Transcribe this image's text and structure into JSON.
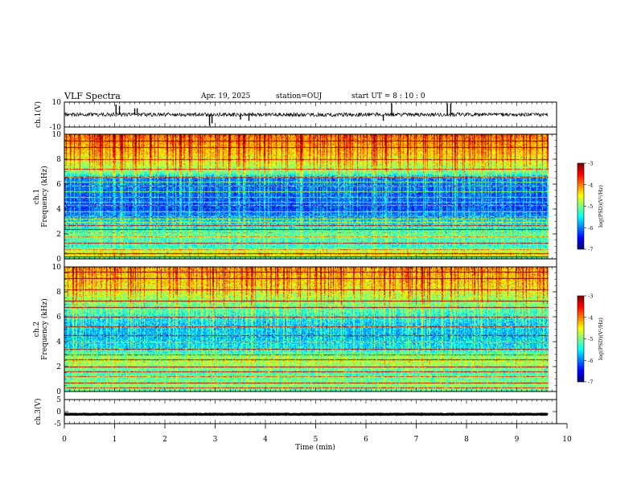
{
  "header": {
    "title": "VLF Spectra",
    "date": "Apr. 19, 2025",
    "station": "station=OUJ",
    "start_ut": "start UT =  8 : 10 : 0"
  },
  "colors": {
    "background": "#ffffff",
    "axes": "#000000",
    "trace": "#000000"
  },
  "chart_data": [
    {
      "type": "line",
      "name": "ch1-waveform",
      "ylabel": "ch.1(V)",
      "xlim": [
        0,
        10
      ],
      "ylim": [
        -10,
        10
      ],
      "ytick_labels": [
        "10",
        "-10"
      ],
      "ytick_values": [
        10,
        -10
      ],
      "data_extent_min": 9.83,
      "baseline_value": 0,
      "noise_amplitude": 1.5,
      "spikes": [
        {
          "x": 1.05,
          "y": 8
        },
        {
          "x": 1.12,
          "y": 7
        },
        {
          "x": 1.43,
          "y": 5
        },
        {
          "x": 1.48,
          "y": 5
        },
        {
          "x": 2.95,
          "y": -9
        },
        {
          "x": 3.0,
          "y": -7
        },
        {
          "x": 3.58,
          "y": -4
        },
        {
          "x": 3.75,
          "y": -5
        },
        {
          "x": 6.48,
          "y": -5
        },
        {
          "x": 6.65,
          "y": 9
        },
        {
          "x": 7.78,
          "y": 9
        },
        {
          "x": 7.85,
          "y": 9
        }
      ]
    },
    {
      "type": "heatmap",
      "name": "ch1-spectrogram",
      "ylabel": "ch.1",
      "ylabel2": "Frequency (kHz)",
      "xlim": [
        0,
        10
      ],
      "ylim": [
        0,
        10
      ],
      "ytick_labels": [
        "0",
        "2",
        "4",
        "6",
        "8",
        "10"
      ],
      "ytick_values": [
        0,
        2,
        4,
        6,
        8,
        10
      ],
      "data_extent_min": 9.83,
      "colorbar": {
        "label": "log(PSD)(V²/Hz)",
        "range": [
          -7,
          -3
        ],
        "tick_labels": [
          "-3",
          "-4",
          "-5",
          "-6",
          "-7"
        ],
        "tick_values": [
          -3,
          -4,
          -5,
          -6,
          -7
        ]
      },
      "background_profile": [
        {
          "f": 0,
          "p": -5.6
        },
        {
          "f": 0.4,
          "p": -4.4
        },
        {
          "f": 1.0,
          "p": -5.4
        },
        {
          "f": 2.0,
          "p": -5.2
        },
        {
          "f": 3.0,
          "p": -5.7
        },
        {
          "f": 4.0,
          "p": -6.3
        },
        {
          "f": 5.0,
          "p": -6.2
        },
        {
          "f": 6.5,
          "p": -6.1
        },
        {
          "f": 6.9,
          "p": -5.2
        },
        {
          "f": 7.5,
          "p": -4.8
        },
        {
          "f": 8.5,
          "p": -4.4
        },
        {
          "f": 10,
          "p": -4.0
        }
      ],
      "tones_khz": [
        0.2,
        0.45,
        0.8,
        1.3,
        1.8,
        2.1,
        2.4,
        2.7,
        3.0,
        3.2,
        3.45,
        3.8,
        4.3,
        4.6,
        5.0,
        5.4,
        5.9,
        6.2,
        6.6,
        7.2,
        8.0,
        9.0,
        9.5
      ],
      "noise": 0.45,
      "stripe_rate": 0.33
    },
    {
      "type": "heatmap",
      "name": "ch2-spectrogram",
      "ylabel": "ch.2",
      "ylabel2": "Frequency (kHz)",
      "xlim": [
        0,
        10
      ],
      "ylim": [
        0,
        10
      ],
      "ytick_labels": [
        "0",
        "2",
        "4",
        "6",
        "8",
        "10"
      ],
      "ytick_values": [
        0,
        2,
        4,
        6,
        8,
        10
      ],
      "data_extent_min": 9.83,
      "colorbar": {
        "label": "log(PSD)(V²/Hz)",
        "range": [
          -7,
          -3
        ],
        "tick_labels": [
          "-3",
          "-4",
          "-5",
          "-6",
          "-7"
        ],
        "tick_values": [
          -3,
          -4,
          -5,
          -6,
          -7
        ]
      },
      "background_profile": [
        {
          "f": 0,
          "p": -5.3
        },
        {
          "f": 0.5,
          "p": -5.0
        },
        {
          "f": 1.5,
          "p": -5.3
        },
        {
          "f": 2.5,
          "p": -4.8
        },
        {
          "f": 3.5,
          "p": -5.6
        },
        {
          "f": 4.5,
          "p": -5.8
        },
        {
          "f": 5.5,
          "p": -5.7
        },
        {
          "f": 6.5,
          "p": -5.3
        },
        {
          "f": 7.5,
          "p": -4.9
        },
        {
          "f": 8.5,
          "p": -4.5
        },
        {
          "f": 10,
          "p": -4.2
        }
      ],
      "tones_khz": [
        0.3,
        0.7,
        1.2,
        1.6,
        2.0,
        2.6,
        3.0,
        3.4,
        4.0,
        4.5,
        5.2,
        6.0,
        6.8,
        7.3,
        8.2,
        9.1,
        9.6
      ],
      "noise": 0.5,
      "stripe_rate": 0.3
    },
    {
      "type": "line",
      "name": "ch3-waveform",
      "ylabel": "ch.3(V)",
      "xlabel": "Time (min)",
      "xlim": [
        0,
        10
      ],
      "ylim": [
        -5,
        5
      ],
      "ytick_labels": [
        "5",
        "0",
        "-5"
      ],
      "ytick_values": [
        5,
        0,
        -5
      ],
      "xtick_labels": [
        "0",
        "1",
        "2",
        "3",
        "4",
        "5",
        "6",
        "7",
        "8",
        "9",
        "10"
      ],
      "xtick_values": [
        0,
        1,
        2,
        3,
        4,
        5,
        6,
        7,
        8,
        9,
        10
      ],
      "data_extent_min": 9.83,
      "baseline_value": -1.1,
      "noise_amplitude": 0.1,
      "spikes": []
    }
  ]
}
